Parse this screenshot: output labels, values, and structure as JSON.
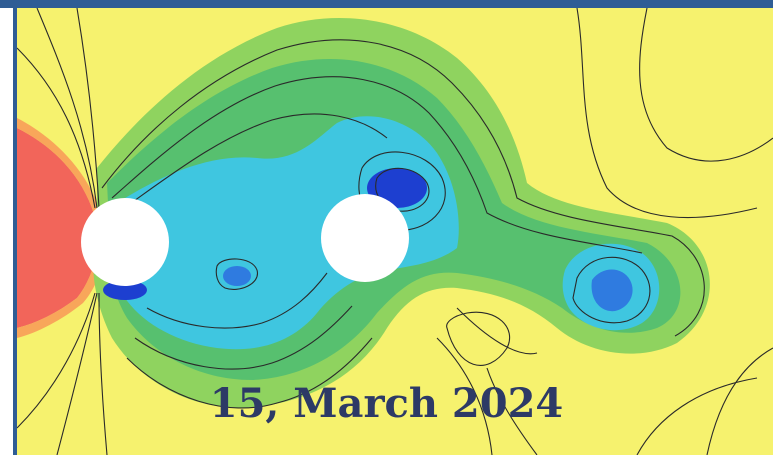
{
  "caption": {
    "date": "15, March 2024"
  },
  "colors": {
    "frame_blue": "#2f5d95",
    "background_yellow": "#f6f26e",
    "high_pressure_red": "#f2655a",
    "orange": "#f8a65a",
    "green": "#8fd35f",
    "mid_green": "#57c06f",
    "cyan": "#3fc6e0",
    "blue": "#2f7be0",
    "deep_blue": "#1d3fd0",
    "contour_line": "#2a2a2a",
    "cylinder": "#ffffff",
    "caption_text": "#2d3a66"
  }
}
